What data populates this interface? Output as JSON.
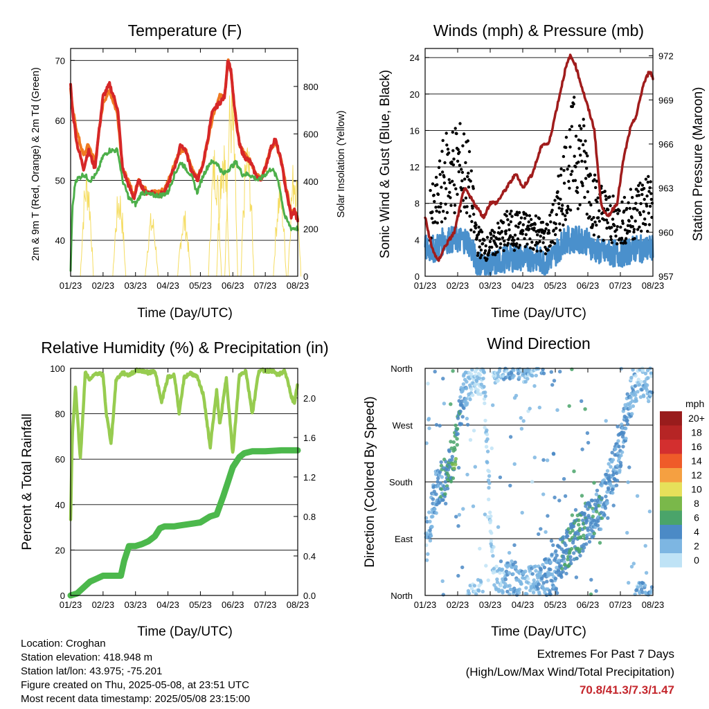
{
  "station": {
    "location": "Location: Croghan",
    "elevation": "Station elevation: 418.948 m",
    "latlon": "Station lat/lon: 43.975; -75.201",
    "created": "Figure created on Thu, 2025-05-08, at 23:51 UTC",
    "recent": "Most recent data timestamp: 2025/05/08 23:15:00"
  },
  "extremes": {
    "title": "Extremes For Past 7 Days",
    "subtitle": "(High/Low/Max Wind/Total Precipitation)",
    "values": "70.8/41.3/7.3/1.47"
  },
  "colors": {
    "temp_red": "#d62728",
    "temp_orange": "#f07a21",
    "dewpoint_green": "#4daf4a",
    "solar_yellow": "#f5dc60",
    "gust_black": "#000000",
    "wind_blue": "#4a90cc",
    "pressure_maroon": "#a01c1c",
    "rh_lightgreen": "#97cc50",
    "rain_green": "#4cb84c"
  },
  "chart_data": [
    {
      "type": "line",
      "title": "Temperature (F)",
      "xlabel": "Time (Day/UTC)",
      "ylabel": "2m & 9m T (Red, Orange) & 2m Td (Green)",
      "y2label": "Solar Insolation (Yellow)",
      "x_ticks": [
        "01/23",
        "02/23",
        "03/23",
        "04/23",
        "05/23",
        "06/23",
        "07/23",
        "08/23"
      ],
      "xlim": [
        0,
        7
      ],
      "ylim": [
        34,
        72
      ],
      "y_ticks": [
        40,
        50,
        60,
        70
      ],
      "y2lim": [
        0,
        960
      ],
      "y2_ticks": [
        0,
        200,
        400,
        600,
        800
      ],
      "grid": "horizontal",
      "series": [
        {
          "name": "2m T",
          "axis": "left",
          "x": [
            0,
            0.05,
            0.2,
            0.4,
            0.55,
            0.75,
            0.85,
            1.0,
            1.2,
            1.45,
            1.6,
            1.8,
            1.95,
            2.1,
            2.3,
            2.5,
            2.7,
            2.9,
            3.05,
            3.25,
            3.4,
            3.55,
            3.7,
            3.9,
            4.05,
            4.2,
            4.35,
            4.45,
            4.6,
            4.75,
            4.85,
            4.95,
            5.05,
            5.2,
            5.35,
            5.55,
            5.7,
            5.85,
            6.0,
            6.15,
            6.3,
            6.5,
            6.65,
            6.8,
            6.9,
            7.0
          ],
          "values": [
            66,
            62,
            56,
            52,
            55,
            52,
            57,
            64,
            66,
            62,
            52,
            49,
            47,
            50,
            48,
            48,
            47.5,
            48,
            50,
            53,
            56,
            55,
            52,
            50,
            52,
            56,
            61,
            62,
            63,
            64,
            70.5,
            68,
            62,
            56,
            54,
            53,
            51,
            50,
            52,
            55,
            57,
            53,
            48,
            44,
            45,
            43
          ]
        },
        {
          "name": "9m T",
          "axis": "left",
          "x": [
            0,
            0.05,
            0.2,
            0.4,
            0.55,
            0.75,
            0.85,
            1.0,
            1.2,
            1.45,
            1.6,
            1.8,
            1.95,
            2.1,
            2.3,
            2.5,
            2.7,
            2.9,
            3.05,
            3.25,
            3.4,
            3.55,
            3.7,
            3.9,
            4.05,
            4.2,
            4.35,
            4.45,
            4.6,
            4.75,
            4.85,
            4.95,
            5.05,
            5.2,
            5.35,
            5.55,
            5.7,
            5.85,
            6.0,
            6.15,
            6.3,
            6.5,
            6.65,
            6.8,
            6.9,
            7.0
          ],
          "values": [
            65.5,
            62,
            58,
            54,
            56,
            53,
            57,
            63,
            65,
            61,
            52,
            49.5,
            47.5,
            50,
            48.5,
            48,
            48,
            48.5,
            50.5,
            53.5,
            55,
            55,
            52.5,
            50.5,
            52,
            56,
            60,
            62,
            64,
            64,
            70,
            68,
            62,
            56,
            54.5,
            53,
            51.5,
            50.5,
            52,
            55,
            56.5,
            53,
            48.5,
            44.5,
            45,
            43.5
          ]
        },
        {
          "name": "2m Td",
          "axis": "left",
          "x": [
            0,
            0.05,
            0.15,
            0.4,
            0.6,
            0.8,
            1.0,
            1.2,
            1.45,
            1.6,
            1.8,
            2.0,
            2.2,
            2.5,
            2.8,
            3.0,
            3.2,
            3.4,
            3.55,
            3.7,
            3.9,
            4.1,
            4.3,
            4.5,
            4.7,
            4.9,
            5.1,
            5.3,
            5.5,
            5.8,
            6.0,
            6.2,
            6.4,
            6.6,
            6.8,
            7.0
          ],
          "values": [
            35,
            45,
            50,
            51,
            50,
            51,
            54,
            55,
            55,
            50,
            47,
            46,
            48,
            47.5,
            47.5,
            48,
            51,
            53,
            52,
            51,
            48,
            51,
            53,
            53,
            51,
            52,
            53,
            51,
            51,
            50,
            51,
            52,
            50,
            44,
            42,
            42
          ]
        },
        {
          "name": "Solar Insolation",
          "axis": "right",
          "peaks_x": [
            0.5,
            1.5,
            2.5,
            3.5,
            4.45,
            4.7,
            4.95,
            5.45,
            6.45,
            6.9
          ],
          "peaks_values": [
            480,
            390,
            280,
            290,
            580,
            640,
            860,
            600,
            420,
            530
          ]
        }
      ]
    },
    {
      "type": "scatter",
      "title": "Winds (mph) & Pressure (mb)",
      "xlabel": "Time (Day/UTC)",
      "ylabel": "Sonic Wind & Gust (Blue, Black)",
      "y2label": "Station Pressure (Maroon)",
      "x_ticks": [
        "01/23",
        "02/23",
        "03/23",
        "04/23",
        "05/23",
        "06/23",
        "07/23",
        "08/23"
      ],
      "xlim": [
        0,
        7
      ],
      "ylim": [
        0,
        25
      ],
      "y_ticks": [
        0,
        4,
        8,
        12,
        16,
        20,
        24
      ],
      "y2lim": [
        957,
        972.5
      ],
      "y2_ticks": [
        957,
        960,
        963,
        966,
        969,
        972
      ],
      "grid": "horizontal",
      "series": [
        {
          "name": "Gust",
          "axis": "left",
          "x": [
            0.3,
            0.6,
            1.0,
            1.3,
            1.6,
            1.9,
            2.2,
            2.5,
            2.8,
            3.1,
            3.4,
            3.7,
            4.0,
            4.3,
            4.6,
            4.9,
            5.2,
            5.5,
            5.8,
            6.1,
            6.4,
            6.7,
            7.0
          ],
          "values": [
            7,
            11,
            12,
            11,
            4,
            3,
            4,
            5,
            5,
            5,
            5,
            4,
            6,
            11,
            14,
            12,
            8,
            7,
            6,
            6,
            7,
            8,
            8
          ]
        },
        {
          "name": "Sonic Wind",
          "axis": "left",
          "x": [
            0.3,
            0.6,
            1.0,
            1.3,
            1.6,
            1.9,
            2.2,
            2.5,
            2.8,
            3.1,
            3.4,
            3.7,
            4.0,
            4.3,
            4.6,
            4.9,
            5.2,
            5.5,
            5.8,
            6.1,
            6.4,
            6.7,
            7.0
          ],
          "values": [
            3,
            4,
            4,
            4,
            1.5,
            1,
            1.5,
            2,
            2,
            2,
            2,
            1.5,
            2.5,
            4,
            4,
            4,
            3,
            2.5,
            2.5,
            2.5,
            3,
            3,
            3
          ]
        },
        {
          "name": "Station Pressure",
          "axis": "right",
          "x": [
            0,
            0.2,
            0.4,
            0.6,
            0.9,
            1.2,
            1.5,
            1.8,
            2.0,
            2.2,
            2.5,
            2.8,
            3.0,
            3.3,
            3.6,
            3.8,
            4.1,
            4.3,
            4.45,
            4.6,
            4.8,
            5.0,
            5.2,
            5.4,
            5.6,
            5.9,
            6.1,
            6.3,
            6.5,
            6.7,
            6.9,
            7.0
          ],
          "values": [
            961,
            959,
            958,
            959,
            960,
            963,
            962,
            961,
            962,
            962,
            963,
            964,
            963,
            964,
            966,
            966,
            969,
            971,
            972,
            971.5,
            970,
            968.5,
            967,
            962,
            961,
            962,
            965,
            967,
            968,
            970,
            971,
            970.5
          ]
        }
      ]
    },
    {
      "type": "line",
      "title": "Relative Humidity (%) & Precipitation (in)",
      "xlabel": "Time (Day/UTC)",
      "ylabel": "Percent & Total Rainfall",
      "x_ticks": [
        "01/23",
        "02/23",
        "03/23",
        "04/23",
        "05/23",
        "06/23",
        "07/23",
        "08/23"
      ],
      "xlim": [
        0,
        7
      ],
      "ylim": [
        0,
        100
      ],
      "y_ticks": [
        0,
        20,
        40,
        60,
        80,
        100
      ],
      "y2lim": [
        0,
        2.3
      ],
      "y2_ticks": [
        0.0,
        0.4,
        0.8,
        1.2,
        1.6,
        2.0
      ],
      "grid": "horizontal",
      "series": [
        {
          "name": "Relative Humidity",
          "axis": "left",
          "x": [
            0,
            0.05,
            0.15,
            0.3,
            0.45,
            0.6,
            0.8,
            1.0,
            1.1,
            1.25,
            1.4,
            1.6,
            1.8,
            2.0,
            2.2,
            2.4,
            2.6,
            2.8,
            3.0,
            3.2,
            3.35,
            3.5,
            3.7,
            3.9,
            4.1,
            4.3,
            4.5,
            4.6,
            4.8,
            5.0,
            5.2,
            5.4,
            5.6,
            5.8,
            6.0,
            6.2,
            6.4,
            6.6,
            6.8,
            6.9,
            7.0
          ],
          "values": [
            33,
            70,
            92,
            60,
            98,
            95,
            98,
            97,
            80,
            67,
            95,
            98,
            97,
            99,
            99,
            98,
            99,
            85,
            96,
            97,
            80,
            96,
            98,
            96,
            88,
            65,
            90,
            75,
            96,
            62,
            97,
            99,
            80,
            99,
            99,
            99,
            97,
            99,
            88,
            84,
            94
          ]
        },
        {
          "name": "Total Rainfall",
          "axis": "right",
          "x": [
            0,
            0.2,
            0.4,
            0.6,
            0.8,
            1.0,
            1.3,
            1.55,
            1.65,
            1.8,
            2.0,
            2.2,
            2.4,
            2.6,
            2.75,
            2.9,
            3.2,
            3.4,
            3.6,
            3.8,
            4.0,
            4.3,
            4.5,
            4.7,
            4.85,
            4.95,
            5.0,
            5.2,
            5.35,
            5.6,
            6.0,
            6.5,
            7.0
          ],
          "values": [
            0,
            0.02,
            0.08,
            0.14,
            0.17,
            0.2,
            0.2,
            0.2,
            0.35,
            0.5,
            0.5,
            0.52,
            0.55,
            0.6,
            0.68,
            0.7,
            0.7,
            0.71,
            0.72,
            0.73,
            0.74,
            0.8,
            0.82,
            1.0,
            1.15,
            1.25,
            1.3,
            1.4,
            1.44,
            1.46,
            1.46,
            1.47,
            1.47
          ]
        }
      ]
    },
    {
      "type": "scatter",
      "title": "Wind Direction",
      "xlabel": "Time (Day/UTC)",
      "ylabel": "Direction (Colored By Speed)",
      "x_ticks": [
        "01/23",
        "02/23",
        "03/23",
        "04/23",
        "05/23",
        "06/23",
        "07/23",
        "08/23"
      ],
      "xlim": [
        0,
        7
      ],
      "y_ticks": [
        "North",
        "East",
        "South",
        "West",
        "North"
      ],
      "ylim": [
        0,
        360
      ],
      "grid": "horizontal",
      "colorbar": {
        "title": "mph",
        "labels": [
          "20+",
          "18",
          "16",
          "14",
          "12",
          "10",
          "8",
          "6",
          "4",
          "2",
          "0"
        ],
        "colors": [
          "#991c1c",
          "#b62525",
          "#d32f2f",
          "#ef5b29",
          "#f5a041",
          "#e6e05a",
          "#7ab84a",
          "#4aa46a",
          "#4b8ac6",
          "#7db6e2",
          "#bfe3f6"
        ]
      },
      "series": [
        {
          "name": "Direction",
          "x": [
            0.1,
            0.3,
            0.5,
            0.7,
            0.9,
            1.1,
            1.3,
            1.5,
            1.8,
            2.1,
            2.4,
            2.7,
            3.0,
            3.3,
            3.6,
            3.9,
            4.2,
            4.5,
            4.8,
            5.1,
            5.4,
            5.6,
            5.9,
            6.2,
            6.4,
            6.6,
            6.9
          ],
          "values": [
            90,
            160,
            180,
            200,
            230,
            300,
            340,
            350,
            355,
            10,
            15,
            20,
            10,
            15,
            20,
            30,
            60,
            80,
            100,
            120,
            140,
            170,
            210,
            290,
            330,
            350,
            340
          ],
          "speeds": [
            2,
            3,
            4,
            5,
            6,
            4,
            2,
            1,
            1,
            1,
            2,
            3,
            2,
            2,
            3,
            3,
            4,
            5,
            5,
            4,
            4,
            3,
            3,
            3,
            2,
            2,
            2
          ]
        }
      ]
    }
  ]
}
